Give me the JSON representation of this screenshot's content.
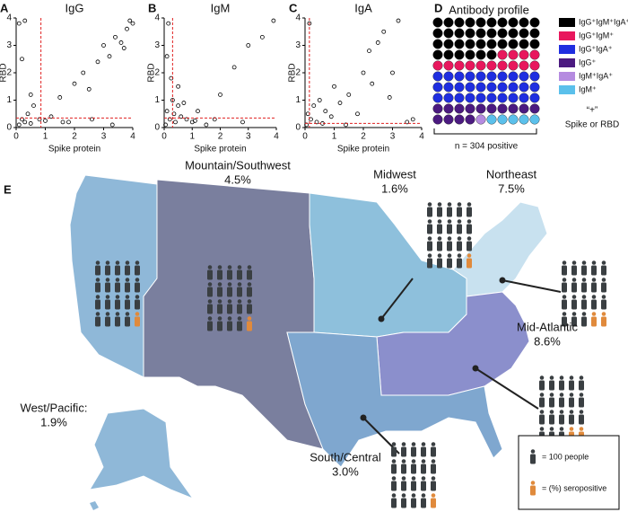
{
  "chart_data": [
    {
      "type": "scatter",
      "panel": "A",
      "title": "IgG",
      "x_label": "Spike protein",
      "y_label": "RBD",
      "x": [
        0.1,
        0.2,
        0.3,
        0.4,
        0.5,
        0.6,
        0.2,
        0.3,
        0.8,
        1.0,
        1.2,
        1.5,
        1.8,
        2.0,
        2.3,
        2.5,
        2.8,
        3.0,
        3.2,
        3.4,
        3.6,
        3.8,
        3.9,
        4.0,
        3.7,
        2.6,
        1.6,
        0.5,
        0.1,
        3.3
      ],
      "values": [
        0.1,
        0.3,
        0.2,
        0.5,
        0.15,
        0.8,
        2.5,
        3.9,
        0.3,
        0.25,
        0.4,
        1.1,
        0.2,
        1.6,
        2.0,
        1.4,
        2.4,
        3.0,
        2.6,
        3.3,
        3.1,
        3.6,
        3.9,
        3.8,
        2.9,
        0.3,
        0.2,
        1.2,
        3.8,
        0.1
      ],
      "xlim": [
        0,
        4
      ],
      "ylim": [
        0,
        4
      ],
      "xticks": [
        0,
        1,
        2,
        3,
        4
      ],
      "yticks": [
        0,
        1,
        2,
        3,
        4
      ],
      "threshold_x": 0.85,
      "threshold_y": 0.35,
      "color": "#000000",
      "threshold_color": "#e02020"
    },
    {
      "type": "scatter",
      "panel": "B",
      "title": "IgM",
      "x_label": "Spike protein",
      "y_label": "RBD",
      "x": [
        0.05,
        0.1,
        0.2,
        0.3,
        0.4,
        0.5,
        0.6,
        0.8,
        1.0,
        1.2,
        1.5,
        2.0,
        2.5,
        3.0,
        3.5,
        3.9,
        0.15,
        0.25,
        0.7,
        0.35,
        1.8,
        2.8,
        0.1,
        0.5,
        1.1
      ],
      "values": [
        0.1,
        0.6,
        0.3,
        1.0,
        0.2,
        0.8,
        0.4,
        0.3,
        0.2,
        0.6,
        0.1,
        1.2,
        2.2,
        3.0,
        3.3,
        3.9,
        3.8,
        1.8,
        0.9,
        0.5,
        0.3,
        0.2,
        2.6,
        1.5,
        0.25
      ],
      "xlim": [
        0,
        4
      ],
      "ylim": [
        0,
        4
      ],
      "xticks": [
        0,
        1,
        2,
        3,
        4
      ],
      "yticks": [
        0,
        1,
        2,
        3,
        4
      ],
      "threshold_x": 0.3,
      "threshold_y": 0.35,
      "color": "#000000",
      "threshold_color": "#e02020"
    },
    {
      "type": "scatter",
      "panel": "C",
      "title": "IgA",
      "x_label": "Spike protein",
      "y_label": "RBD",
      "x": [
        0.05,
        0.1,
        0.2,
        0.3,
        0.4,
        0.5,
        0.7,
        0.9,
        1.0,
        1.2,
        1.5,
        1.8,
        2.0,
        2.3,
        2.5,
        2.7,
        3.0,
        3.2,
        3.5,
        3.7,
        0.6,
        1.4,
        2.2,
        2.9,
        0.15
      ],
      "values": [
        0.1,
        0.5,
        0.3,
        0.8,
        0.2,
        1.0,
        0.6,
        0.4,
        1.5,
        0.9,
        1.2,
        0.5,
        2.0,
        1.6,
        3.1,
        3.5,
        2.0,
        3.9,
        0.2,
        0.3,
        0.15,
        0.1,
        2.8,
        1.1,
        3.8
      ],
      "xlim": [
        0,
        4
      ],
      "ylim": [
        0,
        4
      ],
      "xticks": [
        0,
        1,
        2,
        3,
        4
      ],
      "yticks": [
        0,
        1,
        2,
        3,
        4
      ],
      "threshold_x": 0.15,
      "threshold_y": 0.15,
      "color": "#000000",
      "threshold_color": "#e02020"
    },
    {
      "type": "waffle",
      "panel": "D",
      "title": "Antibody profile",
      "categories": [
        "IgG⁺IgM⁺IgA⁺",
        "IgG⁺IgM⁺",
        "IgG⁺IgA⁺",
        "IgG⁺",
        "IgM⁺IgA⁺",
        "IgM⁺"
      ],
      "values": [
        36,
        14,
        30,
        14,
        1,
        5
      ],
      "colors": [
        "#000000",
        "#e8175d",
        "#1f2ee0",
        "#4b1a80",
        "#b58be0",
        "#5bc0eb"
      ],
      "note": [
        "“+”",
        "Spike or RBD"
      ],
      "footnote": "n = 304 positive"
    },
    {
      "type": "map",
      "panel": "E",
      "categories": [
        "West/Pacific:",
        "Mountain/Southwest",
        "Midwest",
        "Northeast",
        "Mid-Atlantic",
        "South/Central"
      ],
      "values": [
        1.9,
        4.5,
        1.6,
        7.5,
        8.6,
        3.0
      ],
      "value_labels": [
        "1.9%",
        "4.5%",
        "1.6%",
        "7.5%",
        "8.6%",
        "3.0%"
      ],
      "colors": [
        "#8fb8d8",
        "#7a7f9e",
        "#8ec0dc",
        "#c8e1ef",
        "#8b8fcc",
        "#7fa7cf"
      ],
      "icon_color": "#3a3f42",
      "positive_color": "#e08a3c",
      "legend": [
        "= 100 people",
        "= (%) seropositive"
      ]
    }
  ]
}
